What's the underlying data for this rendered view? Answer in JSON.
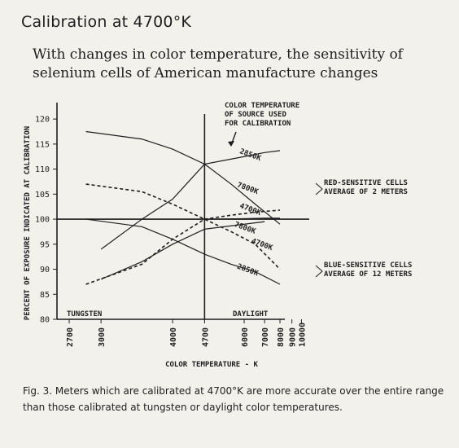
{
  "page": {
    "title": "Calibration at 4700°K",
    "subtitle": "With changes in color temperature, the sensitivity of selenium cells of American manufacture changes",
    "caption": "Fig. 3.  Meters which are calibrated at 4700°K are more accurate over the entire range than those calibrated at tungsten or daylight color temperatures."
  },
  "chart_data": {
    "type": "line",
    "xlabel": "COLOR TEMPERATURE - K",
    "ylabel": "PERCENT OF EXPOSURE INDICATED AT CALIBRATION",
    "x_scale": "reciprocal",
    "xlim": [
      2600,
      11000
    ],
    "ylim": [
      80,
      121
    ],
    "yticks": [
      80,
      85,
      90,
      95,
      100,
      105,
      110,
      115,
      120
    ],
    "xticks": [
      2700,
      3000,
      4000,
      4700,
      6000,
      7000,
      8000,
      9000,
      10000
    ],
    "reference_lines": {
      "y": 100,
      "x": 4700
    },
    "annotations": {
      "source_note": [
        "COLOR TEMPERATURE",
        "OF SOURCE USED",
        "FOR CALIBRATION"
      ],
      "tungsten": "TUNGSTEN",
      "daylight": "DAYLIGHT",
      "red_group": [
        "RED-SENSITIVE CELLS",
        "AVERAGE OF 2 METERS"
      ],
      "blue_group": [
        "BLUE-SENSITIVE CELLS",
        "AVERAGE OF 12 METERS"
      ]
    },
    "series": [
      {
        "name": "2850K",
        "group": "red",
        "style": "solid",
        "points": [
          [
            3000,
            94
          ],
          [
            3500,
            100
          ],
          [
            4000,
            104
          ],
          [
            4700,
            111
          ],
          [
            6000,
            112.5
          ],
          [
            7000,
            113.3
          ],
          [
            8000,
            113.7
          ]
        ]
      },
      {
        "name": "7800K",
        "group": "red",
        "style": "solid",
        "points": [
          [
            2850,
            117.5
          ],
          [
            3500,
            116
          ],
          [
            4000,
            114
          ],
          [
            4700,
            111
          ],
          [
            5500,
            107
          ],
          [
            6500,
            103
          ],
          [
            8000,
            99
          ]
        ]
      },
      {
        "name": "4700K",
        "group": "red",
        "style": "solid",
        "points": [
          [
            2850,
            100
          ],
          [
            3500,
            100
          ],
          [
            4000,
            100
          ],
          [
            4700,
            100
          ],
          [
            6000,
            100.1
          ],
          [
            7000,
            100.2
          ],
          [
            8000,
            100.2
          ]
        ]
      },
      {
        "name": "4700K",
        "group": "blue",
        "style": "dashed",
        "points": [
          [
            2850,
            107
          ],
          [
            3500,
            105.5
          ],
          [
            4000,
            103
          ],
          [
            4700,
            100
          ],
          [
            5500,
            97.5
          ],
          [
            6500,
            95
          ],
          [
            8000,
            90
          ]
        ]
      },
      {
        "name": "2850K",
        "group": "blue",
        "style": "solid",
        "points": [
          [
            2850,
            100
          ],
          [
            3500,
            98.5
          ],
          [
            4000,
            96
          ],
          [
            4700,
            93
          ],
          [
            5500,
            91
          ],
          [
            6500,
            89.5
          ],
          [
            8000,
            87
          ]
        ]
      },
      {
        "name": "7800K",
        "group": "blue",
        "style": "dashed",
        "points": [
          [
            2850,
            87
          ],
          [
            3500,
            91
          ],
          [
            4000,
            96
          ],
          [
            4700,
            100
          ],
          [
            5500,
            100.8
          ],
          [
            6500,
            101.4
          ],
          [
            8000,
            101.8
          ]
        ]
      },
      {
        "name": "",
        "group": "blue",
        "style": "solid",
        "points": [
          [
            3000,
            88
          ],
          [
            3500,
            91.5
          ],
          [
            4000,
            95
          ],
          [
            4700,
            98
          ],
          [
            6000,
            99
          ],
          [
            7000,
            99.5
          ]
        ]
      }
    ],
    "series_labels": [
      {
        "text": "2850K",
        "x": 5800,
        "y": 113.2
      },
      {
        "text": "7800K",
        "x": 5700,
        "y": 106.5
      },
      {
        "text": "4700K",
        "x": 5800,
        "y": 102.3
      },
      {
        "text": "7800K",
        "x": 5600,
        "y": 98.6
      },
      {
        "text": "4700K",
        "x": 6300,
        "y": 95.3
      },
      {
        "text": "2850K",
        "x": 5700,
        "y": 90.2
      }
    ]
  }
}
